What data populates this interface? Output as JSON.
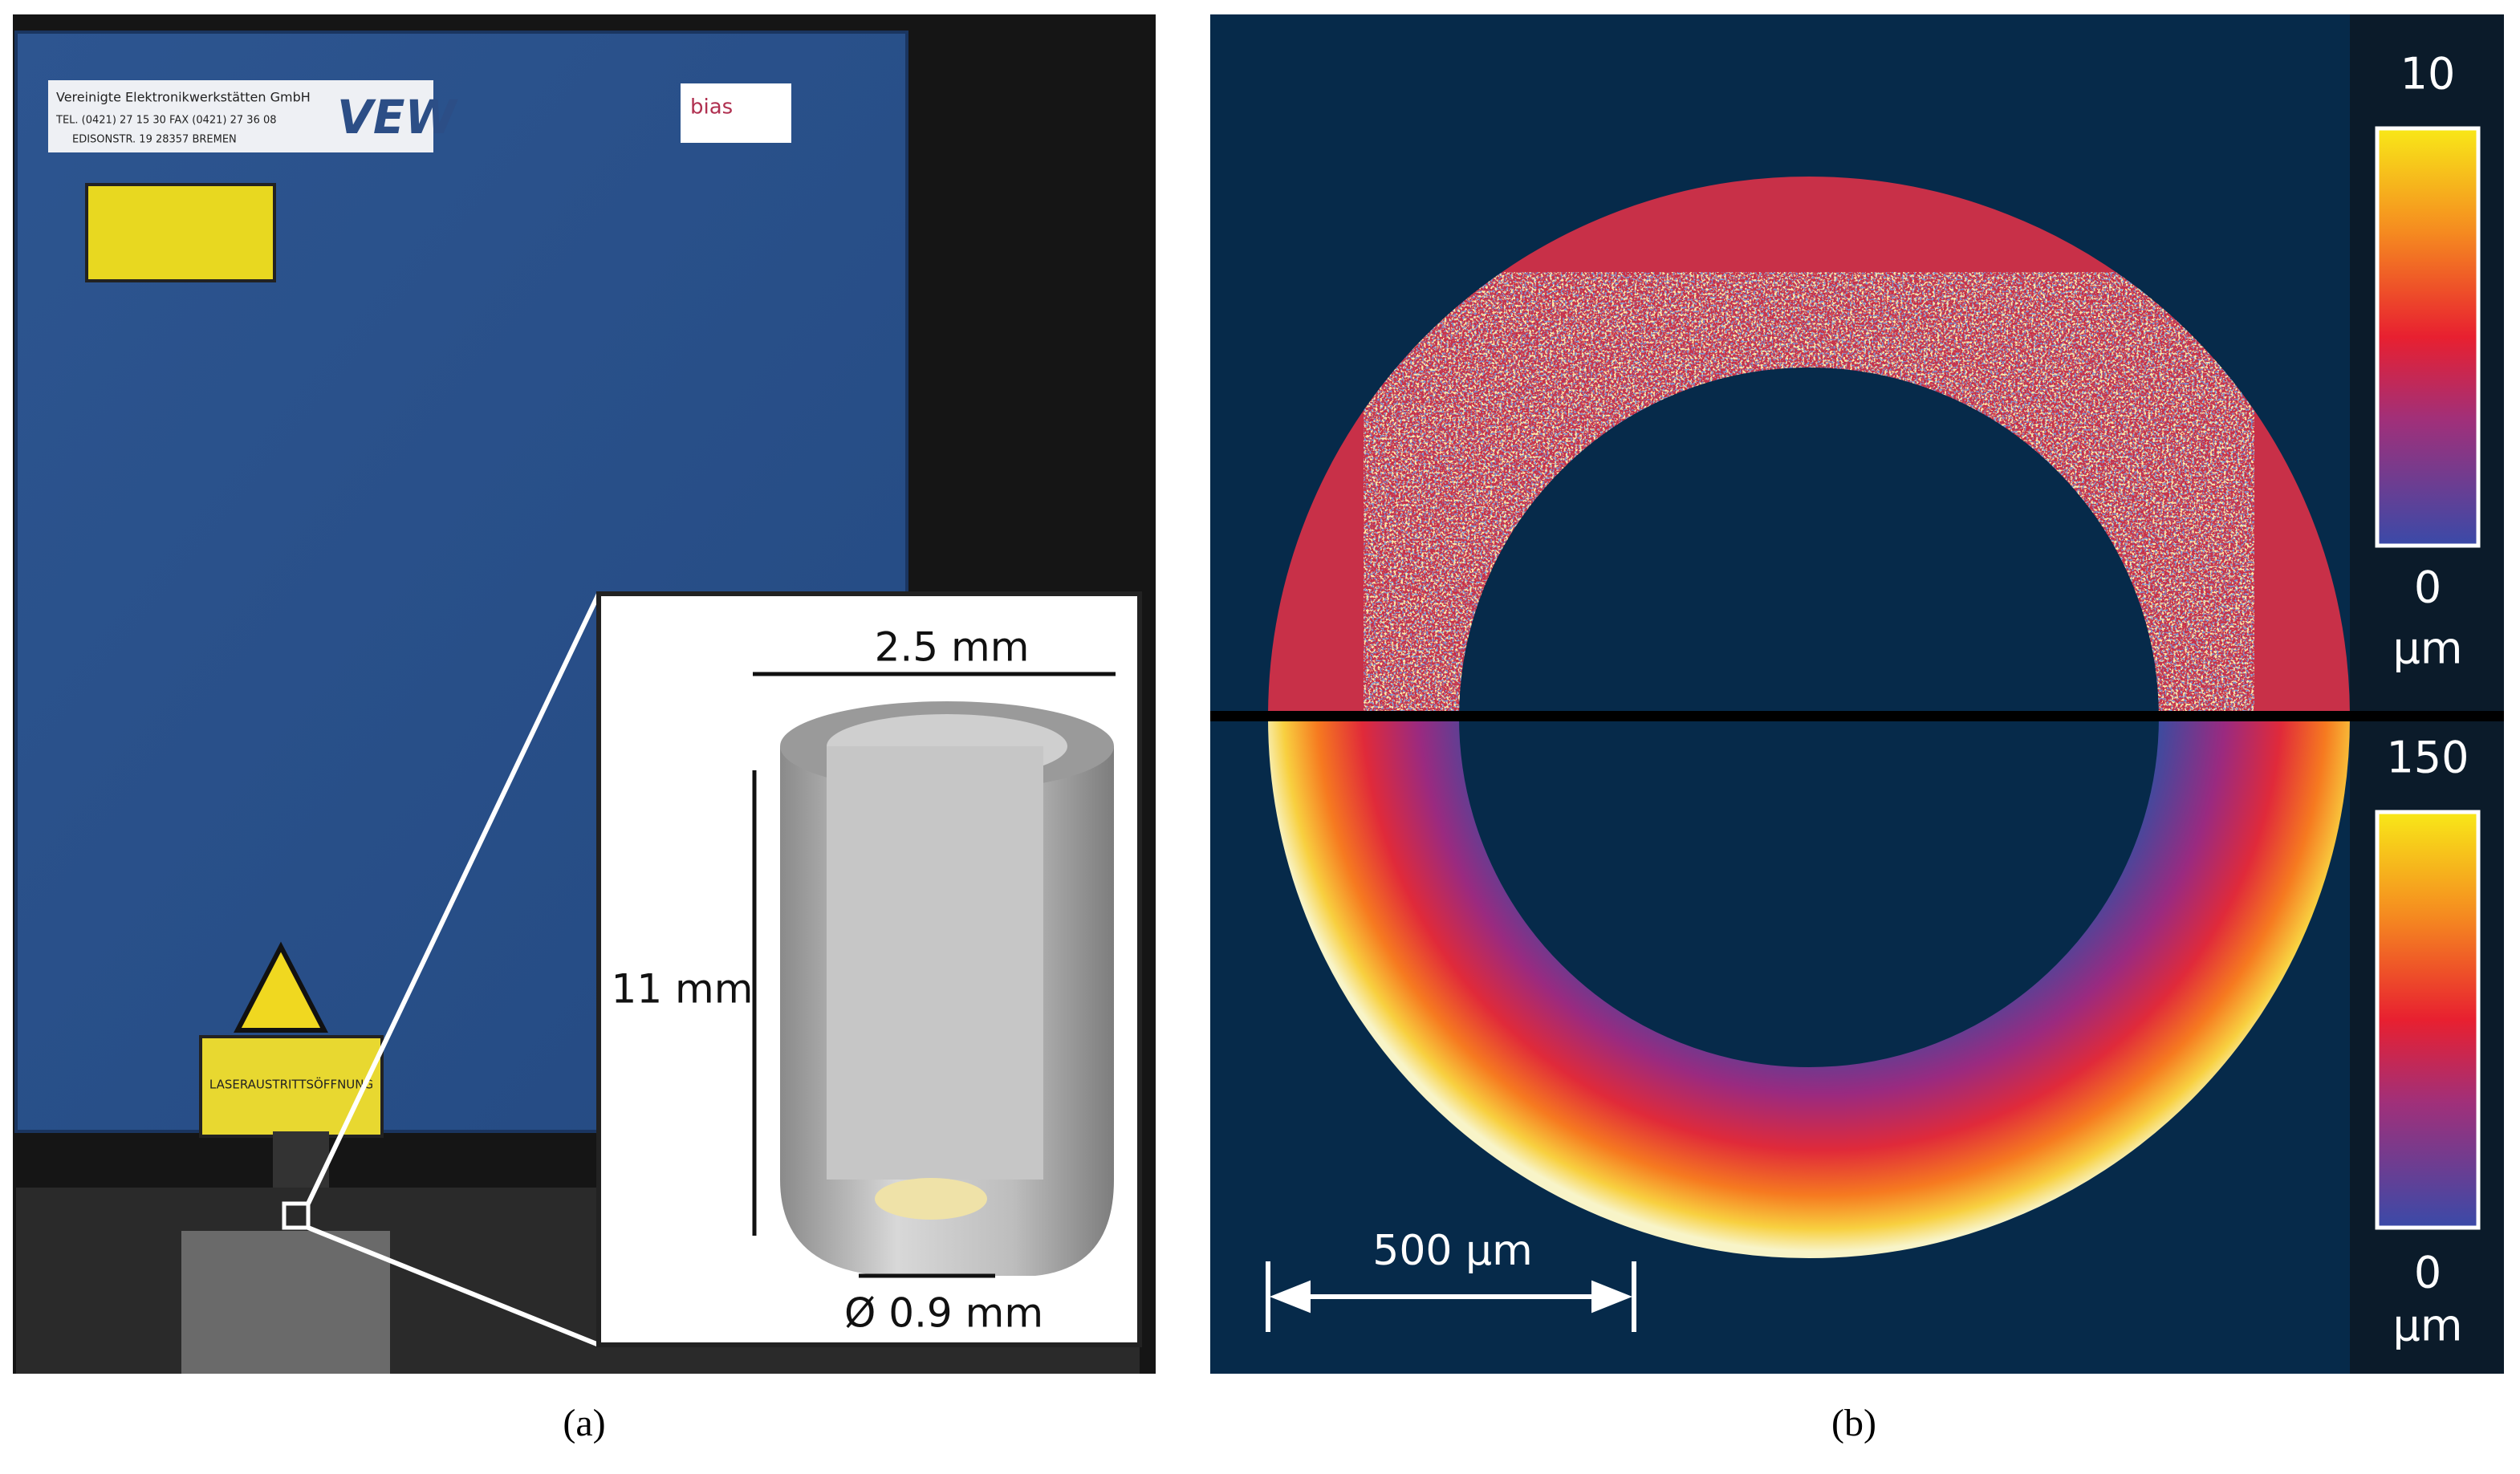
{
  "panel_a": {
    "caption": "(a)",
    "device_labels": {
      "company": "Vereinigte Elektronikwerkstätten GmbH",
      "phone": "TEL. (0421) 27 15 30   FAX (0421) 27 36 08",
      "address": "EDISONSTR. 19   28357 BREMEN",
      "logo": "VEW",
      "partner": "bias",
      "aperture": "LASERAUSTRITTSÖFFNUNG"
    },
    "inset": {
      "width_label": "2.5 mm",
      "height_label": "11 mm",
      "diameter_label": "Ø 0.9 mm"
    }
  },
  "panel_b": {
    "caption": "(b)",
    "top_colorbar": {
      "max": "10",
      "min": "0",
      "unit": "µm"
    },
    "bottom_colorbar": {
      "max": "150",
      "min": "0",
      "unit": "µm"
    },
    "scale_bar": "500 µm"
  }
}
